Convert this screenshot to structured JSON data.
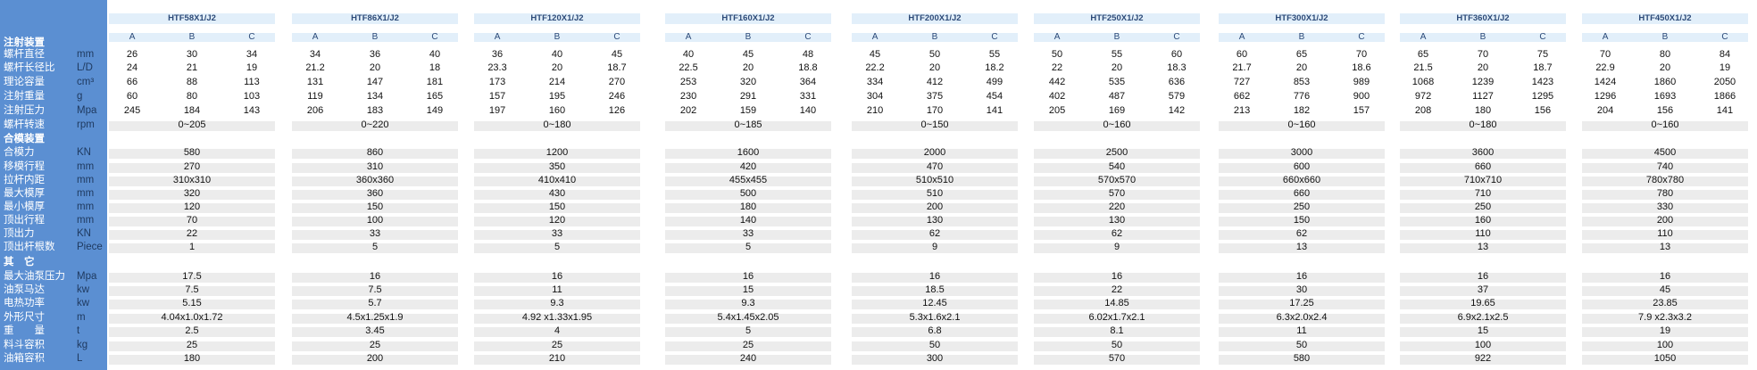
{
  "labels": [
    {
      "text": "注射装置",
      "hdr": true
    },
    {
      "text": "螺杆直径",
      "unit": "mm"
    },
    {
      "text": "螺杆长径比",
      "unit": "L/D"
    },
    {
      "text": "理论容量",
      "unit": "cm³"
    },
    {
      "text": "注射重量",
      "unit": "g"
    },
    {
      "text": "注射压力",
      "unit": "Mpa"
    },
    {
      "text": "螺杆转速",
      "unit": "rpm"
    },
    {
      "text": "合模装置",
      "hdr": true
    },
    {
      "text": "合模力",
      "unit": "KN"
    },
    {
      "text": "移模行程",
      "unit": "mm"
    },
    {
      "text": "拉杆内距",
      "unit": "mm"
    },
    {
      "text": "最大模厚",
      "unit": "mm"
    },
    {
      "text": "最小模厚",
      "unit": "mm"
    },
    {
      "text": "顶出行程",
      "unit": "mm"
    },
    {
      "text": "顶出力",
      "unit": "KN"
    },
    {
      "text": "顶出杆根数",
      "unit": "Piece"
    },
    {
      "text": "其　它",
      "hdr": true
    },
    {
      "text": "最大油泵压力",
      "unit": "Mpa"
    },
    {
      "text": "油泵马达",
      "unit": "kw"
    },
    {
      "text": "电热功率",
      "unit": "kw"
    },
    {
      "text": "外形尺寸",
      "unit": "m"
    },
    {
      "text": "重　　量",
      "unit": "t"
    },
    {
      "text": "料斗容积",
      "unit": "kg"
    },
    {
      "text": "油箱容积",
      "unit": "L"
    }
  ],
  "models": [
    {
      "name": "HTF58X1/J2",
      "abc": [
        "A",
        "B",
        "C"
      ],
      "inj": [
        [
          "26",
          "30",
          "34"
        ],
        [
          "24",
          "21",
          "19"
        ],
        [
          "66",
          "88",
          "113"
        ],
        [
          "60",
          "80",
          "103"
        ],
        [
          "245",
          "184",
          "143"
        ]
      ],
      "speed": "0~205",
      "clamp": [
        "580",
        "270",
        "310x310",
        "320",
        "120",
        "70",
        "22",
        "1"
      ],
      "other": [
        "17.5",
        "7.5",
        "5.15",
        "4.04x1.0x1.72",
        "2.5",
        "25",
        "180"
      ]
    },
    {
      "name": "HTF86X1/J2",
      "abc": [
        "A",
        "B",
        "C"
      ],
      "inj": [
        [
          "34",
          "36",
          "40"
        ],
        [
          "21.2",
          "20",
          "18"
        ],
        [
          "131",
          "147",
          "181"
        ],
        [
          "119",
          "134",
          "165"
        ],
        [
          "206",
          "183",
          "149"
        ]
      ],
      "speed": "0~220",
      "clamp": [
        "860",
        "310",
        "360x360",
        "360",
        "150",
        "100",
        "33",
        "5"
      ],
      "other": [
        "16",
        "7.5",
        "5.7",
        "4.5x1.25x1.9",
        "3.45",
        "25",
        "200"
      ]
    },
    {
      "name": "HTF120X1/J2",
      "abc": [
        "A",
        "B",
        "C"
      ],
      "inj": [
        [
          "36",
          "40",
          "45"
        ],
        [
          "23.3",
          "20",
          "18.7"
        ],
        [
          "173",
          "214",
          "270"
        ],
        [
          "157",
          "195",
          "246"
        ],
        [
          "197",
          "160",
          "126"
        ]
      ],
      "speed": "0~180",
      "clamp": [
        "1200",
        "350",
        "410x410",
        "430",
        "150",
        "120",
        "33",
        "5"
      ],
      "other": [
        "16",
        "11",
        "9.3",
        "4.92 x1.33x1.95",
        "4",
        "25",
        "210"
      ]
    },
    {
      "name": "HTF160X1/J2",
      "abc": [
        "A",
        "B",
        "C"
      ],
      "inj": [
        [
          "40",
          "45",
          "48"
        ],
        [
          "22.5",
          "20",
          "18.8"
        ],
        [
          "253",
          "320",
          "364"
        ],
        [
          "230",
          "291",
          "331"
        ],
        [
          "202",
          "159",
          "140"
        ]
      ],
      "speed": "0~185",
      "clamp": [
        "1600",
        "420",
        "455x455",
        "500",
        "180",
        "140",
        "33",
        "5"
      ],
      "other": [
        "16",
        "15",
        "9.3",
        "5.4x1.45x2.05",
        "5",
        "25",
        "240"
      ]
    },
    {
      "name": "HTF200X1/J2",
      "abc": [
        "A",
        "B",
        "C"
      ],
      "inj": [
        [
          "45",
          "50",
          "55"
        ],
        [
          "22.2",
          "20",
          "18.2"
        ],
        [
          "334",
          "412",
          "499"
        ],
        [
          "304",
          "375",
          "454"
        ],
        [
          "210",
          "170",
          "141"
        ]
      ],
      "speed": "0~150",
      "clamp": [
        "2000",
        "470",
        "510x510",
        "510",
        "200",
        "130",
        "62",
        "9"
      ],
      "other": [
        "16",
        "18.5",
        "12.45",
        "5.3x1.6x2.1",
        "6.8",
        "50",
        "300"
      ]
    },
    {
      "name": "HTF250X1/J2",
      "abc": [
        "A",
        "B",
        "C"
      ],
      "inj": [
        [
          "50",
          "55",
          "60"
        ],
        [
          "22",
          "20",
          "18.3"
        ],
        [
          "442",
          "535",
          "636"
        ],
        [
          "402",
          "487",
          "579"
        ],
        [
          "205",
          "169",
          "142"
        ]
      ],
      "speed": "0~160",
      "clamp": [
        "2500",
        "540",
        "570x570",
        "570",
        "220",
        "130",
        "62",
        "9"
      ],
      "other": [
        "16",
        "22",
        "14.85",
        "6.02x1.7x2.1",
        "8.1",
        "50",
        "570"
      ]
    },
    {
      "name": "HTF300X1/J2",
      "abc": [
        "A",
        "B",
        "C"
      ],
      "inj": [
        [
          "60",
          "65",
          "70"
        ],
        [
          "21.7",
          "20",
          "18.6"
        ],
        [
          "727",
          "853",
          "989"
        ],
        [
          "662",
          "776",
          "900"
        ],
        [
          "213",
          "182",
          "157"
        ]
      ],
      "speed": "0~160",
      "clamp": [
        "3000",
        "600",
        "660x660",
        "660",
        "250",
        "150",
        "62",
        "13"
      ],
      "other": [
        "16",
        "30",
        "17.25",
        "6.3x2.0x2.4",
        "11",
        "50",
        "580"
      ]
    },
    {
      "name": "HTF360X1/J2",
      "abc": [
        "A",
        "B",
        "C"
      ],
      "inj": [
        [
          "65",
          "70",
          "75"
        ],
        [
          "21.5",
          "20",
          "18.7"
        ],
        [
          "1068",
          "1239",
          "1423"
        ],
        [
          "972",
          "1127",
          "1295"
        ],
        [
          "208",
          "180",
          "156"
        ]
      ],
      "speed": "0~180",
      "clamp": [
        "3600",
        "660",
        "710x710",
        "710",
        "250",
        "160",
        "110",
        "13"
      ],
      "other": [
        "16",
        "37",
        "19.65",
        "6.9x2.1x2.5",
        "15",
        "100",
        "922"
      ]
    },
    {
      "name": "HTF450X1/J2",
      "abc": [
        "A",
        "B",
        "C"
      ],
      "inj": [
        [
          "70",
          "80",
          "84"
        ],
        [
          "22.9",
          "20",
          "19"
        ],
        [
          "1424",
          "1860",
          "2050"
        ],
        [
          "1296",
          "1693",
          "1866"
        ],
        [
          "204",
          "156",
          "141"
        ]
      ],
      "speed": "0~160",
      "clamp": [
        "4500",
        "740",
        "780x780",
        "780",
        "330",
        "200",
        "110",
        "13"
      ],
      "other": [
        "16",
        "45",
        "23.85",
        "7.9 x2.3x3.2",
        "19",
        "100",
        "1050"
      ]
    }
  ]
}
